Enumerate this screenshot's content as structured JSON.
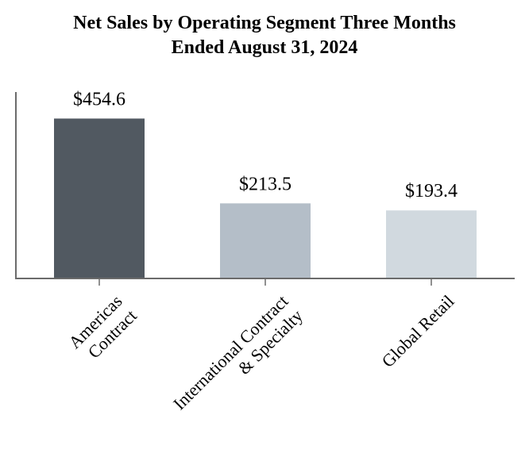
{
  "title_lines": [
    "Net Sales by Operating Segment Three Months",
    "Ended August 31, 2024"
  ],
  "chart_data": {
    "type": "bar",
    "title": "Net Sales by Operating Segment Three Months Ended August 31, 2024",
    "categories": [
      [
        "Americas",
        "Contract"
      ],
      [
        "International Contract",
        "& Specialty"
      ],
      [
        "Global Retail"
      ]
    ],
    "values": [
      454.6,
      213.5,
      193.4
    ],
    "value_labels": [
      "$454.6",
      "$213.5",
      "$193.4"
    ],
    "colors": [
      "#515961",
      "#b4bec8",
      "#d1d9df"
    ],
    "xlabel": "",
    "ylabel": "",
    "ylim": [
      0,
      530
    ],
    "grid": false,
    "legend": "none"
  }
}
